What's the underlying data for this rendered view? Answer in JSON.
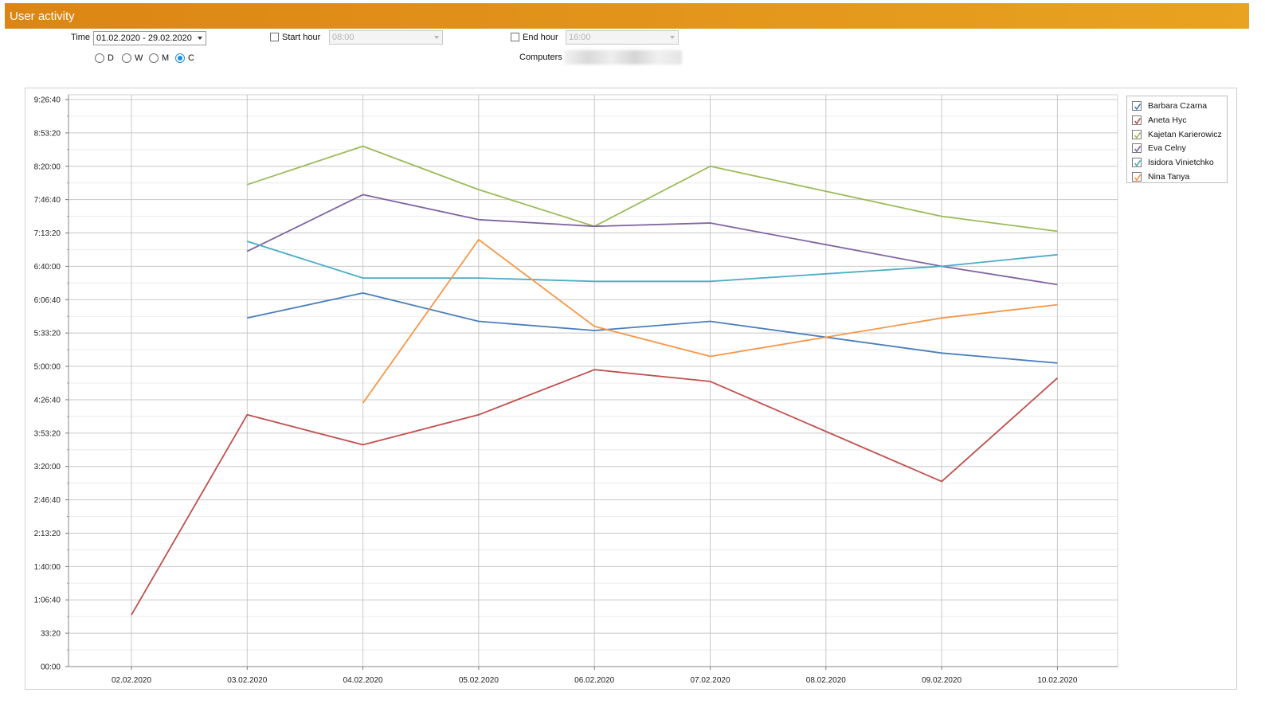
{
  "window": {
    "title": "User activity"
  },
  "filters": {
    "time_label": "Time",
    "time_value": "01.02.2020 - 29.02.2020",
    "period_options": [
      {
        "label": "D",
        "selected": false
      },
      {
        "label": "W",
        "selected": false
      },
      {
        "label": "M",
        "selected": false
      },
      {
        "label": "C",
        "selected": true
      }
    ],
    "start_hour_label": "Start hour",
    "start_hour_checked": false,
    "start_hour_value": "08:00",
    "end_hour_label": "End hour",
    "end_hour_checked": false,
    "end_hour_value": "16:00",
    "computers_label": "Computers"
  },
  "chart_data": {
    "type": "line",
    "title": "",
    "xlabel": "",
    "ylabel": "",
    "categories": [
      "02.02.2020",
      "03.02.2020",
      "04.02.2020",
      "05.02.2020",
      "06.02.2020",
      "07.02.2020",
      "08.02.2020",
      "09.02.2020",
      "10.02.2020"
    ],
    "y_ticks": [
      "00:00",
      "33:20",
      "1:06:40",
      "1:40:00",
      "2:13:20",
      "2:46:40",
      "3:20:00",
      "3:53:20",
      "4:26:40",
      "5:00:00",
      "5:33:20",
      "6:06:40",
      "6:40:00",
      "7:13:20",
      "7:46:40",
      "8:20:00",
      "8:53:20",
      "9:26:40"
    ],
    "y_unit": "seconds",
    "ylim": [
      0,
      34000
    ],
    "grid": true,
    "legend_position": "top-right",
    "series": [
      {
        "name": "Barbara Czarna",
        "color": "#4a7ebb",
        "checked": true,
        "values": [
          null,
          20900,
          22400,
          20700,
          20150,
          20700,
          null,
          18800,
          18200
        ]
      },
      {
        "name": "Aneta Hyc",
        "color": "#c0504d",
        "checked": true,
        "values": [
          3100,
          15100,
          13300,
          15100,
          17800,
          17100,
          null,
          11100,
          17300
        ]
      },
      {
        "name": "Kajetan Karierowicz",
        "color": "#9bbb59",
        "checked": true,
        "values": [
          null,
          28900,
          31200,
          28600,
          26400,
          30000,
          null,
          27000,
          26100
        ]
      },
      {
        "name": "Eva Celny",
        "color": "#8064a2",
        "checked": true,
        "values": [
          null,
          24900,
          28300,
          26800,
          26400,
          26600,
          null,
          24000,
          22900
        ]
      },
      {
        "name": "Isidora Vinietchko",
        "color": "#4bacc6",
        "checked": true,
        "values": [
          null,
          25500,
          23300,
          23300,
          23100,
          23100,
          null,
          24000,
          24700
        ]
      },
      {
        "name": "Nina Tanya",
        "color": "#f79646",
        "checked": true,
        "values": [
          null,
          null,
          15800,
          25600,
          20400,
          18600,
          null,
          20900,
          21700
        ]
      }
    ]
  }
}
